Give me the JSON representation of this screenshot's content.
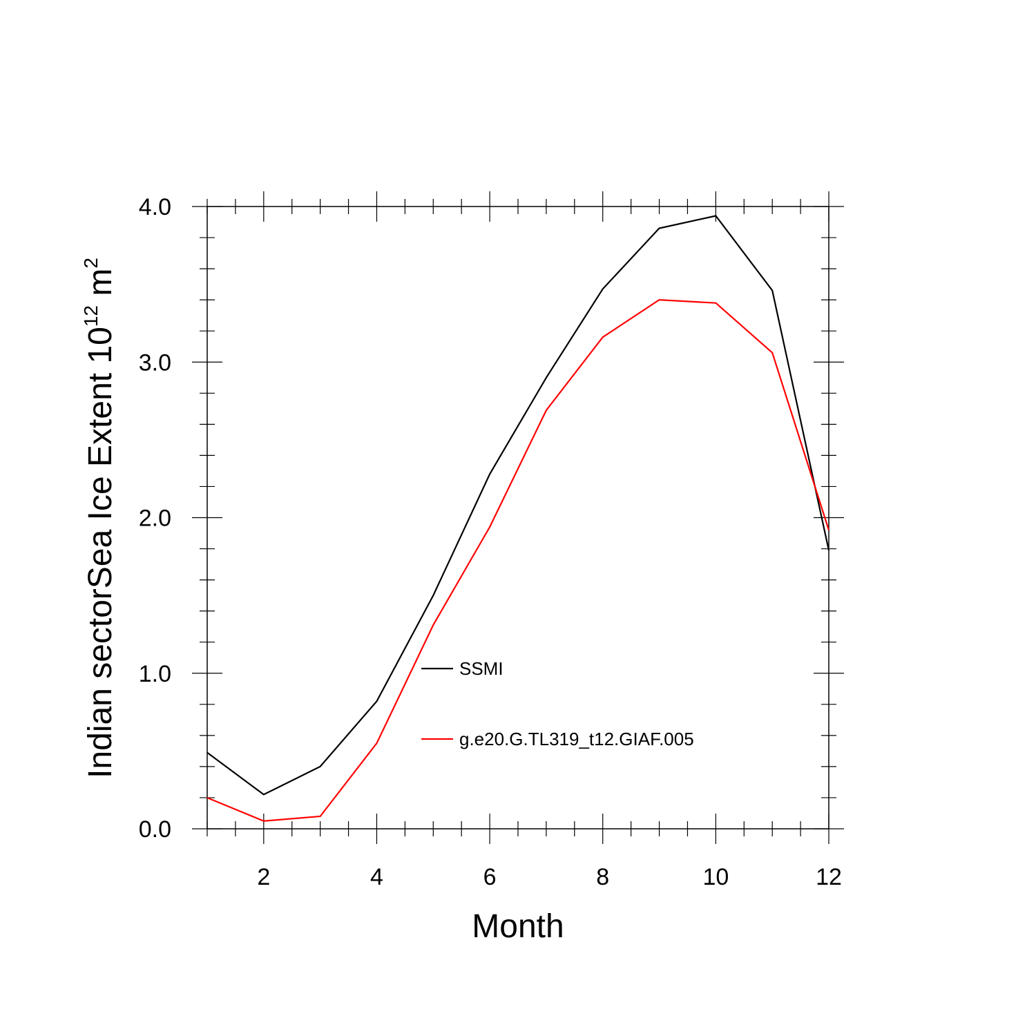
{
  "chart_data": {
    "type": "line",
    "xlabel": "Month",
    "ylabel": {
      "main": "Indian sectorSea Ice Extent 10",
      "exp": "12",
      "unit": " m",
      "unit_exp": "2"
    },
    "xlim": [
      1,
      12
    ],
    "ylim": [
      0,
      4
    ],
    "x_ticks": [
      2,
      4,
      6,
      8,
      10,
      12
    ],
    "x_tick_labels": [
      "2",
      "4",
      "6",
      "8",
      "10",
      "12"
    ],
    "y_ticks": [
      0,
      1,
      2,
      3,
      4
    ],
    "y_tick_labels": [
      "0.0",
      "1.0",
      "2.0",
      "3.0",
      "4.0"
    ],
    "x": [
      1,
      2,
      3,
      4,
      5,
      6,
      7,
      8,
      9,
      10,
      11,
      12
    ],
    "series": [
      {
        "name": "SSMI",
        "color": "#000000",
        "values": [
          0.49,
          0.22,
          0.4,
          0.82,
          1.5,
          2.28,
          2.9,
          3.47,
          3.86,
          3.94,
          3.46,
          1.79
        ]
      },
      {
        "name": "g.e20.G.TL319_t12.GIAF.005",
        "color": "#ff0000",
        "values": [
          0.2,
          0.05,
          0.08,
          0.55,
          1.31,
          1.94,
          2.69,
          3.16,
          3.4,
          3.38,
          3.06,
          1.92
        ]
      }
    ],
    "grid": false,
    "legend_position": "center"
  }
}
